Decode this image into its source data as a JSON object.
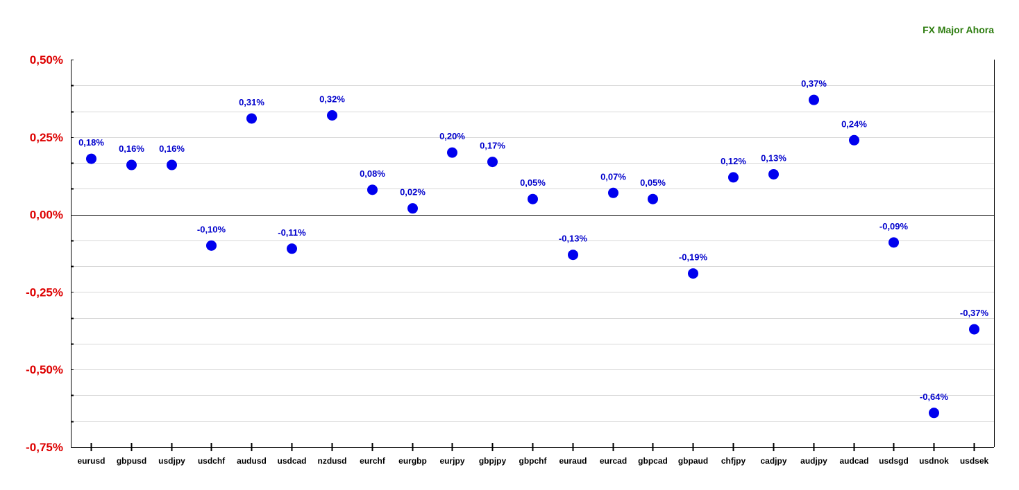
{
  "chart_data": {
    "type": "scatter",
    "title": "FX Major Ahora",
    "xlabel": "",
    "ylabel": "",
    "categories": [
      "eurusd",
      "gbpusd",
      "usdjpy",
      "usdchf",
      "audusd",
      "usdcad",
      "nzdusd",
      "eurchf",
      "eurgbp",
      "eurjpy",
      "gbpjpy",
      "gbpchf",
      "euraud",
      "eurcad",
      "gbpcad",
      "gbpaud",
      "chfjpy",
      "cadjpy",
      "audjpy",
      "audcad",
      "usdsgd",
      "usdnok",
      "usdsek"
    ],
    "values": [
      0.18,
      0.16,
      0.16,
      -0.1,
      0.31,
      -0.11,
      0.32,
      0.08,
      0.02,
      0.2,
      0.17,
      0.05,
      -0.13,
      0.07,
      0.05,
      -0.19,
      0.12,
      0.13,
      0.37,
      0.24,
      -0.09,
      -0.64,
      -0.37
    ],
    "data_labels": [
      "0,18%",
      "0,16%",
      "0,16%",
      "-0,10%",
      "0,31%",
      "-0,11%",
      "0,32%",
      "0,08%",
      "0,02%",
      "0,20%",
      "0,17%",
      "0,05%",
      "-0,13%",
      "0,07%",
      "0,05%",
      "-0,19%",
      "0,12%",
      "0,13%",
      "0,37%",
      "0,24%",
      "-0,09%",
      "-0,64%",
      "-0,37%"
    ],
    "ylim": [
      -0.75,
      0.5
    ],
    "y_ticks": [
      0.5,
      0.25,
      0.0,
      -0.25,
      -0.5,
      -0.75
    ],
    "y_tick_labels": [
      "0,50%",
      "0,25%",
      "0,00%",
      "-0,25%",
      "-0,50%",
      "-0,75%"
    ],
    "grid": true,
    "colors": {
      "point": "#0000ee",
      "data_label": "#0000cc",
      "y_tick_label": "#dd0000",
      "title": "#2e7d10",
      "grid": "#d8d8d8",
      "axis": "#000000",
      "x_tick_label": "#000000"
    }
  }
}
